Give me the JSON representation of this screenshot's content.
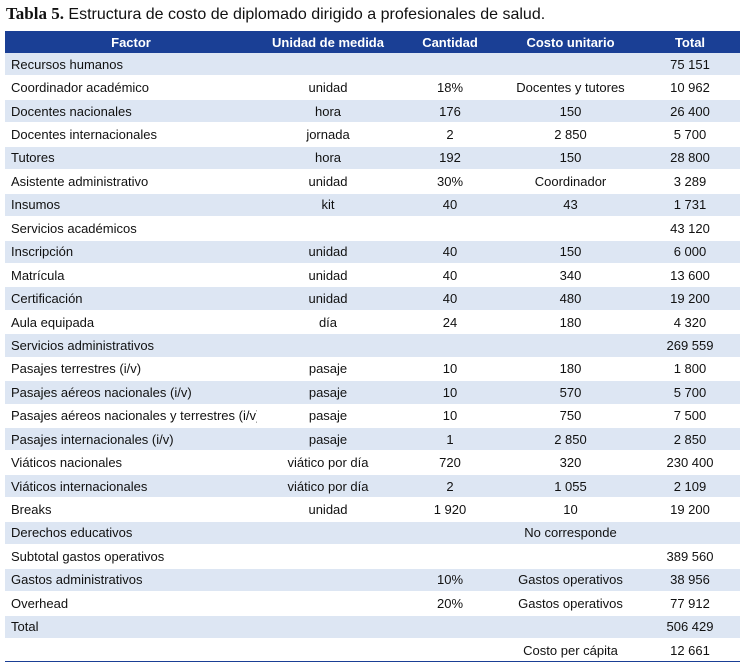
{
  "caption": {
    "label": "Tabla 5.",
    "text": "Estructura de costo de diplomado dirigido a profesionales de salud."
  },
  "headers": [
    "Factor",
    "Unidad de medida",
    "Cantidad",
    "Costo unitario",
    "Total"
  ],
  "rows": [
    {
      "factor": "Recursos humanos",
      "unit": "",
      "qty": "",
      "cost": "",
      "total": "75 151"
    },
    {
      "factor": "Coordinador académico",
      "unit": "unidad",
      "qty": "18%",
      "cost": "Docentes y tutores",
      "total": "10 962"
    },
    {
      "factor": "Docentes nacionales",
      "unit": "hora",
      "qty": "176",
      "cost": "150",
      "total": "26 400"
    },
    {
      "factor": "Docentes internacionales",
      "unit": "jornada",
      "qty": "2",
      "cost": "2 850",
      "total": "5 700"
    },
    {
      "factor": "Tutores",
      "unit": "hora",
      "qty": "192",
      "cost": "150",
      "total": "28 800"
    },
    {
      "factor": "Asistente administrativo",
      "unit": "unidad",
      "qty": "30%",
      "cost": "Coordinador",
      "total": "3 289"
    },
    {
      "factor": "Insumos",
      "unit": "kit",
      "qty": "40",
      "cost": "43",
      "total": "1 731"
    },
    {
      "factor": "Servicios académicos",
      "unit": "",
      "qty": "",
      "cost": "",
      "total": "43 120"
    },
    {
      "factor": "Inscripción",
      "unit": "unidad",
      "qty": "40",
      "cost": "150",
      "total": "6 000"
    },
    {
      "factor": "Matrícula",
      "unit": "unidad",
      "qty": "40",
      "cost": "340",
      "total": "13 600"
    },
    {
      "factor": "Certificación",
      "unit": "unidad",
      "qty": "40",
      "cost": "480",
      "total": "19 200"
    },
    {
      "factor": "Aula equipada",
      "unit": "día",
      "qty": "24",
      "cost": "180",
      "total": "4 320"
    },
    {
      "factor": "Servicios administrativos",
      "unit": "",
      "qty": "",
      "cost": "",
      "total": "269 559"
    },
    {
      "factor": "Pasajes terrestres (i/v)",
      "unit": "pasaje",
      "qty": "10",
      "cost": "180",
      "total": "1 800"
    },
    {
      "factor": "Pasajes aéreos nacionales (i/v)",
      "unit": "pasaje",
      "qty": "10",
      "cost": "570",
      "total": "5 700"
    },
    {
      "factor": "Pasajes aéreos nacionales y terrestres (i/v)",
      "unit": "pasaje",
      "qty": "10",
      "cost": "750",
      "total": "7 500"
    },
    {
      "factor": "Pasajes internacionales (i/v)",
      "unit": "pasaje",
      "qty": "1",
      "cost": "2 850",
      "total": "2 850"
    },
    {
      "factor": "Viáticos nacionales",
      "unit": "viático por día",
      "qty": "720",
      "cost": "320",
      "total": "230 400"
    },
    {
      "factor": "Viáticos internacionales",
      "unit": "viático por día",
      "qty": "2",
      "cost": "1 055",
      "total": "2 109"
    },
    {
      "factor": "Breaks",
      "unit": "unidad",
      "qty": "1 920",
      "cost": "10",
      "total": "19 200"
    },
    {
      "factor": "Derechos educativos",
      "unit": "",
      "qty": "",
      "cost": "No corresponde",
      "total": ""
    },
    {
      "factor": "Subtotal gastos operativos",
      "unit": "",
      "qty": "",
      "cost": "",
      "total": "389 560"
    },
    {
      "factor": "Gastos administrativos",
      "unit": "",
      "qty": "10%",
      "cost": "Gastos operativos",
      "total": "38 956"
    },
    {
      "factor": "Overhead",
      "unit": "",
      "qty": "20%",
      "cost": "Gastos operativos",
      "total": "77 912"
    },
    {
      "factor": "Total",
      "unit": "",
      "qty": "",
      "cost": "",
      "total": "506 429"
    },
    {
      "factor": "",
      "unit": "",
      "qty": "",
      "cost": "Costo per cápita",
      "total": "12 661"
    }
  ],
  "colors": {
    "header_bg": "#1a3f95",
    "stripe": "#dde6f3"
  }
}
